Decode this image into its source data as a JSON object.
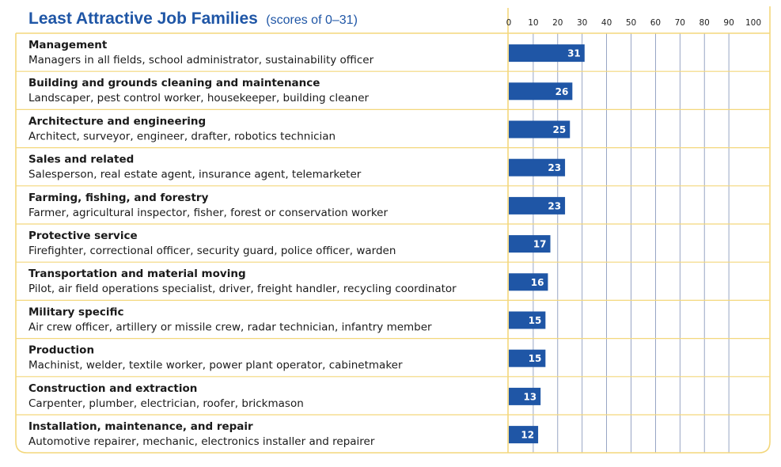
{
  "chart_data": {
    "type": "bar",
    "orientation": "horizontal",
    "title": "Least Attractive Job Families",
    "subtitle": "(scores of 0–31)",
    "x_ticks": [
      "0",
      "10",
      "20",
      "30",
      "40",
      "50",
      "60",
      "70",
      "80",
      "90",
      "100"
    ],
    "xlim": [
      0,
      100
    ],
    "grid": true,
    "bar_color": "#1f56a6",
    "frame_color": "#f3d77c",
    "categories": [
      {
        "name": "Management",
        "description": "Managers in all fields, school administrator, sustainability officer",
        "value": 31
      },
      {
        "name": "Building and grounds cleaning and maintenance",
        "description": "Landscaper, pest control worker, housekeeper, building cleaner",
        "value": 26
      },
      {
        "name": "Architecture and engineering",
        "description": "Architect, surveyor, engineer, drafter, robotics technician",
        "value": 25
      },
      {
        "name": "Sales and related",
        "description": "Salesperson, real estate agent, insurance agent, telemarketer",
        "value": 23
      },
      {
        "name": "Farming, fishing, and forestry",
        "description": "Farmer, agricultural inspector, fisher, forest or conservation worker",
        "value": 23
      },
      {
        "name": "Protective service",
        "description": "Firefighter, correctional officer, security guard, police officer, warden",
        "value": 17
      },
      {
        "name": "Transportation and material moving",
        "description": "Pilot, air field operations specialist, driver, freight handler, recycling coordinator",
        "value": 16
      },
      {
        "name": "Military specific",
        "description": "Air crew officer, artillery or missile crew, radar technician, infantry member",
        "value": 15
      },
      {
        "name": "Production",
        "description": "Machinist, welder, textile worker, power plant operator, cabinetmaker",
        "value": 15
      },
      {
        "name": "Construction and extraction",
        "description": "Carpenter, plumber, electrician, roofer, brickmason",
        "value": 13
      },
      {
        "name": "Installation, maintenance, and repair",
        "description": "Automotive repairer, mechanic, electronics installer and repairer",
        "value": 12
      }
    ]
  }
}
